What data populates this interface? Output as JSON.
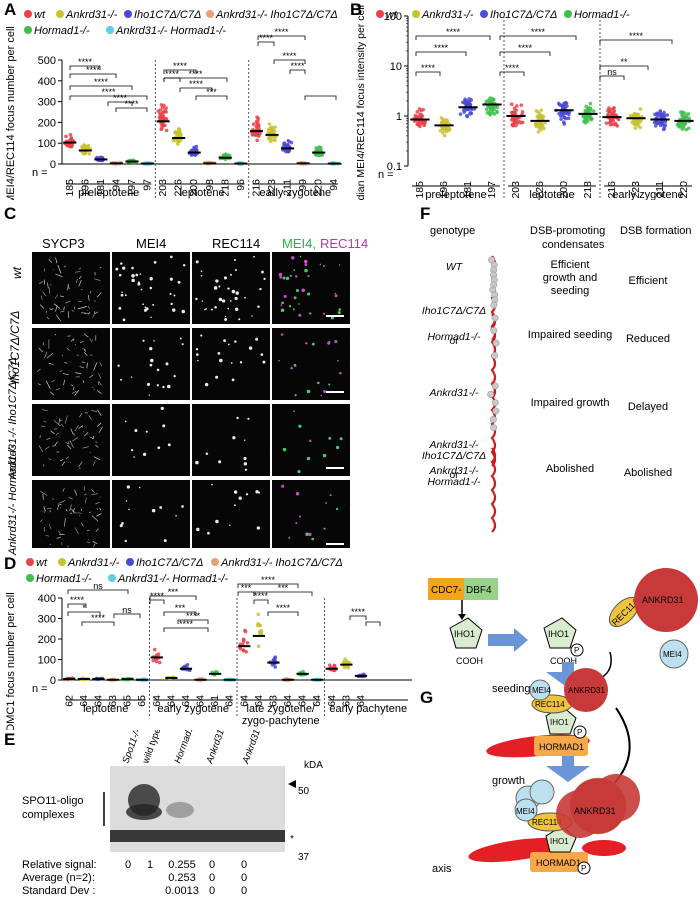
{
  "panels": {
    "A": {
      "label": "A",
      "legend": [
        "wt",
        "Ankrd31-/-",
        "Iho1C7Δ/C7Δ",
        "Ankrd31-/- Iho1C7Δ/C7Δ",
        "Hormad1-/-",
        "Ankrd31-/- Hormad1-/-"
      ],
      "ylabel": "MEI4/REC114 focus number per cell",
      "n_prefix": "n =",
      "stages": [
        "preleptotene",
        "leptotene",
        "early zygotene"
      ],
      "sig": [
        "****",
        "****",
        "****",
        "****",
        "****",
        "****",
        "****",
        "****",
        "****",
        "****",
        "***",
        "****",
        "****",
        "****",
        "****"
      ]
    },
    "B": {
      "label": "B",
      "legend": [
        "wt",
        "Ankrd31-/-",
        "Iho1C7Δ/C7Δ",
        "Hormad1-/-"
      ],
      "ylabel": "Median MEI4/REC114 focus intensity per cell",
      "stages": [
        "preleptotene",
        "leptotene",
        "early zygotene"
      ],
      "sig": [
        "****",
        "****",
        "****",
        "****",
        "****",
        "****",
        "ns",
        "**",
        "****"
      ]
    },
    "C": {
      "label": "C",
      "columns": [
        "SYCP3",
        "MEI4",
        "REC114",
        "MEI4,",
        "REC114"
      ],
      "rows": [
        "wt",
        "Iho1C7Δ/C7Δ",
        "Ankrd31-/- Iho1C7Δ/C7Δ",
        "Ankrd31-/- Hormad1-/-"
      ]
    },
    "D": {
      "label": "D",
      "legend": [
        "wt",
        "Ankrd31-/-",
        "Iho1C7Δ/C7Δ",
        "Ankrd31-/- Iho1C7Δ/C7Δ",
        "Hormad1-/-",
        "Ankrd31-/- Hormad1-/-"
      ],
      "ylabel": "DMC1 focus number per cell",
      "n_prefix": "n =",
      "stages": [
        "leptotene",
        "early zygotene",
        "late zygotene/ zygo-pachytene",
        "early pachytene"
      ],
      "sig": [
        "****",
        "ns",
        "*",
        "****",
        "ns",
        "****",
        "***",
        "***",
        "****",
        "****",
        "***",
        "****",
        "****",
        "****",
        "***",
        "****"
      ]
    },
    "E": {
      "label": "E",
      "lanes": [
        "Spo11-/-",
        "wild type",
        "Hormad1-/-",
        "Ankrd31-/- Hormad1-/-",
        "Ankrd31-/- Iho1C7Δ/C7Δ"
      ],
      "kda": "kDA",
      "markers": [
        "50",
        "37"
      ],
      "band_label": "SPO11-oligo complexes",
      "star": "*",
      "rows": [
        {
          "label": "Relative signal:",
          "values": [
            "0",
            "1",
            "0.255",
            "0",
            "0"
          ]
        },
        {
          "label": "Average (n=2):",
          "values": [
            "",
            "",
            "0.253",
            "0",
            "0"
          ]
        },
        {
          "label": "Standard Dev :",
          "values": [
            "",
            "",
            "0.0013",
            "0",
            "0"
          ]
        }
      ]
    },
    "F": {
      "label": "F",
      "headers": [
        "genotype",
        "DSB-promoting condensates",
        "DSB formation"
      ],
      "rows": [
        {
          "genotype": "WT",
          "condensates": "Efficient growth and seeding",
          "dsb": "Efficient"
        },
        {
          "genotype": "Iho1C7Δ/C7Δ or Hormad1-/-",
          "condensates": "Impaired seeding",
          "dsb": "Reduced"
        },
        {
          "genotype": "Ankrd31-/-",
          "condensates": "Impaired growth",
          "dsb": "Delayed"
        },
        {
          "genotype": "Ankrd31-/- Iho1C7Δ/C7Δ or Ankrd31-/- Hormad1-/-",
          "condensates": "Abolished",
          "dsb": "Abolished"
        }
      ]
    },
    "G": {
      "label": "G",
      "kinase": [
        "CDC7-",
        "DBF4"
      ],
      "labels": {
        "iho1": "IHO1",
        "cooh": "COOH",
        "p": "P",
        "rec114": "REC114",
        "ankrd31": "ANKRD31",
        "mei4": "MEI4",
        "hormad1": "HORMAD1",
        "seeding": "seeding",
        "growth": "growth",
        "axis": "axis"
      }
    }
  },
  "chart_data": [
    {
      "type": "scatter",
      "panel": "A",
      "ylabel": "MEI4/REC114 focus number per cell",
      "ylim": [
        0,
        500
      ],
      "yticks": [
        0,
        100,
        200,
        300,
        400,
        500
      ],
      "groups": [
        "preleptotene",
        "leptotene",
        "early zygotene"
      ],
      "series": [
        {
          "name": "wt",
          "color": "#e8434a",
          "medians": [
            103,
            205,
            158
          ],
          "n": [
            185,
            203,
            216
          ]
        },
        {
          "name": "Ankrd31-/-",
          "color": "#c9c230",
          "medians": [
            65,
            125,
            140
          ],
          "n": [
            196,
            226,
            223
          ]
        },
        {
          "name": "Iho1C7Δ/C7Δ",
          "color": "#4a4ad6",
          "medians": [
            22,
            55,
            75
          ],
          "n": [
            181,
            200,
            211
          ]
        },
        {
          "name": "Ankrd31-/- Iho1C7Δ/C7Δ",
          "color": "#e8a07a",
          "medians": [
            3,
            3,
            3
          ],
          "n": [
            94,
            98,
            99
          ]
        },
        {
          "name": "Hormad1-/-",
          "color": "#3fbf4a",
          "medians": [
            12,
            30,
            55
          ],
          "n": [
            197,
            218,
            220
          ]
        },
        {
          "name": "Ankrd31-/- Hormad1-/-",
          "color": "#5fd0e0",
          "medians": [
            2,
            2,
            2
          ],
          "n": [
            97,
            96,
            94
          ]
        }
      ]
    },
    {
      "type": "scatter",
      "panel": "B",
      "ylabel": "Median MEI4/REC114 focus intensity per cell",
      "scale": "log",
      "ylim": [
        0.1,
        100
      ],
      "yticks": [
        "0.1",
        "1",
        "10",
        "100"
      ],
      "groups": [
        "preleptotene",
        "leptotene",
        "early zygotene"
      ],
      "series": [
        {
          "name": "wt",
          "color": "#e8434a",
          "medians": [
            0.85,
            1.0,
            0.95
          ],
          "n": [
            185,
            203,
            216
          ]
        },
        {
          "name": "Ankrd31-/-",
          "color": "#c9c230",
          "medians": [
            0.65,
            0.8,
            0.9
          ],
          "n": [
            196,
            226,
            223
          ]
        },
        {
          "name": "Iho1C7Δ/C7Δ",
          "color": "#4a4ad6",
          "medians": [
            1.5,
            1.3,
            0.85
          ],
          "n": [
            181,
            200,
            211
          ]
        },
        {
          "name": "Hormad1-/-",
          "color": "#3fbf4a",
          "medians": [
            1.7,
            1.1,
            0.8
          ],
          "n": [
            197,
            218,
            220
          ]
        }
      ]
    },
    {
      "type": "scatter",
      "panel": "D",
      "ylabel": "DMC1 focus number per cell",
      "ylim": [
        0,
        400
      ],
      "yticks": [
        0,
        100,
        200,
        300,
        400
      ],
      "groups": [
        "leptotene",
        "early zygotene",
        "late zygotene/ zygo-pachytene",
        "early pachytene"
      ],
      "series": [
        {
          "name": "wt",
          "color": "#e8434a",
          "medians": [
            5,
            110,
            165,
            55
          ],
          "n": [
            62,
            64,
            64,
            64
          ]
        },
        {
          "name": "Ankrd31-/-",
          "color": "#c9c230",
          "medians": [
            5,
            10,
            215,
            75
          ],
          "n": [
            64,
            64,
            64,
            63
          ]
        },
        {
          "name": "Iho1C7Δ/C7Δ",
          "color": "#4a4ad6",
          "medians": [
            5,
            55,
            85,
            20
          ],
          "n": [
            64,
            64,
            63,
            64
          ]
        },
        {
          "name": "Ankrd31-/- Iho1C7Δ/C7Δ",
          "color": "#e8a07a",
          "medians": [
            1,
            1,
            1,
            null
          ],
          "n": [
            63,
            64,
            64,
            null
          ]
        },
        {
          "name": "Hormad1-/-",
          "color": "#3fbf4a",
          "medians": [
            4,
            30,
            30,
            null
          ],
          "n": [
            65,
            61,
            64,
            null
          ]
        },
        {
          "name": "Ankrd31-/- Hormad1-/-",
          "color": "#5fd0e0",
          "medians": [
            1,
            1,
            1,
            null
          ],
          "n": [
            65,
            64,
            64,
            null
          ]
        }
      ]
    }
  ]
}
